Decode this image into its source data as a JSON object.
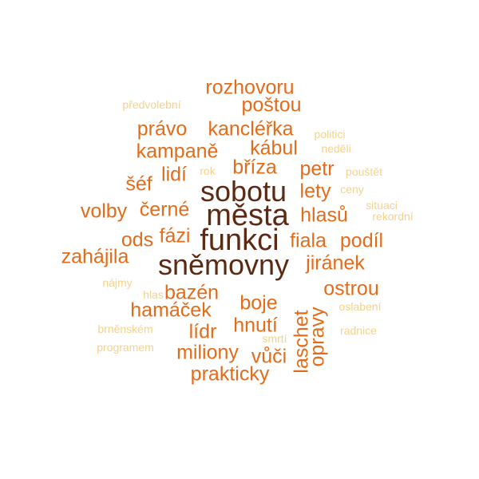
{
  "colors": {
    "dark": "#5c2a12",
    "orange": "#e36c1b",
    "pale": "#f4d28c"
  },
  "words": {
    "mesta": "města",
    "sobotu": "sobotu",
    "funkci": "funkci",
    "snemovny": "sněmovny",
    "rozhovoru": "rozhovoru",
    "postou": "poštou",
    "pravo": "právo",
    "kancler": "kancléřka",
    "kampane": "kampaně",
    "kabul": "kábul",
    "briza": "bříza",
    "petr": "petr",
    "lidi": "lidí",
    "sef": "šéf",
    "lety": "lety",
    "cerne": "černé",
    "volby": "volby",
    "hlasu": "hlasů",
    "fazi": "fázi",
    "ods": "ods",
    "fiala": "fiala",
    "podil": "podíl",
    "zahajila": "zahájila",
    "piranek": "jiránek",
    "bazen": "bazén",
    "ostrou": "ostrou",
    "boje": "boje",
    "hamacek": "hamáček",
    "lidr": "lídr",
    "hnuti": "hnutí",
    "miliony": "miliony",
    "vuci": "vůči",
    "prakticky": "prakticky",
    "laschet": "laschet",
    "opravy": "opravy",
    "predvolebni": "předvolební",
    "politici": "politici",
    "nedeli": "neděli",
    "rok": "rok",
    "poustet": "pouštět",
    "ceny": "ceny",
    "situaci": "situaci",
    "rekordni": "rekordní",
    "najmy": "nájmy",
    "hlas": "hlas",
    "oslabeni": "oslabení",
    "brnenskem": "brněnském",
    "radnice": "radnice",
    "smrti": "smrtí",
    "programem": "programem"
  }
}
